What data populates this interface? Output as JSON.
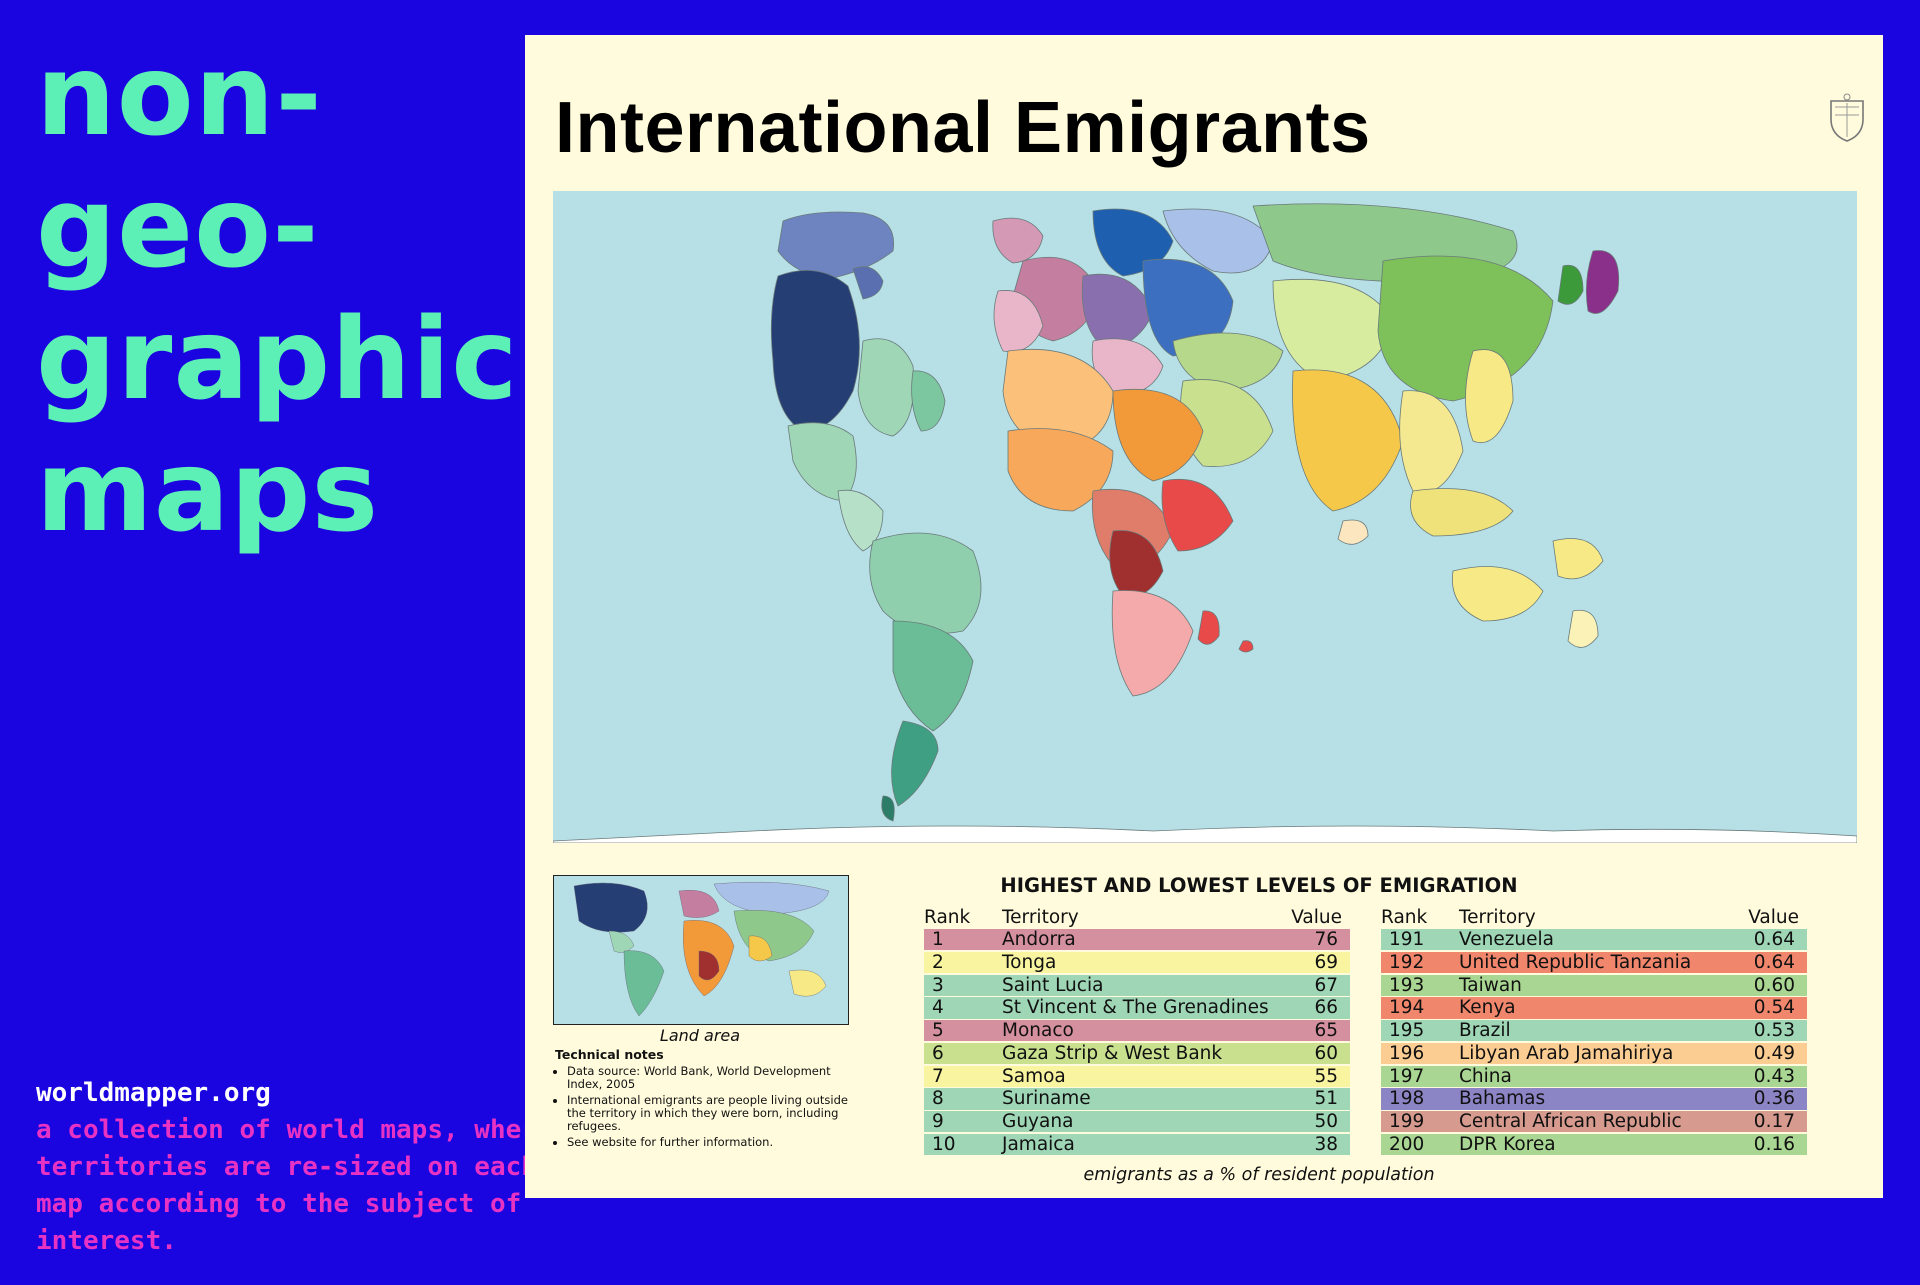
{
  "sidebar": {
    "title_lines": [
      "non-",
      "geo-",
      "graphic",
      "maps"
    ],
    "site": "worldmapper.org",
    "description": "a collection of world maps, where territories are re-sized on each map according to the subject of interest."
  },
  "map": {
    "title": "International Emigrants",
    "inset_caption": "Land area",
    "ocean_color": "#b6e0e6"
  },
  "notes": {
    "heading": "Technical notes",
    "items": [
      "Data source: World Bank, World Development Index, 2005",
      "International emigrants are people living outside the territory in which they were born, including refugees.",
      "See website for further information."
    ]
  },
  "table": {
    "title": "HIGHEST AND LOWEST LEVELS OF EMIGRATION",
    "headers": {
      "rank": "Rank",
      "territory": "Territory",
      "value": "Value"
    },
    "footnote": "emigrants as a % of resident population",
    "highest": [
      {
        "rank": "1",
        "territory": "Andorra",
        "value": "76",
        "color": "#d4909e"
      },
      {
        "rank": "2",
        "territory": "Tonga",
        "value": "69",
        "color": "#f8f4a0"
      },
      {
        "rank": "3",
        "territory": "Saint Lucia",
        "value": "67",
        "color": "#9fd6b6"
      },
      {
        "rank": "4",
        "territory": "St Vincent & The Grenadines",
        "value": "66",
        "color": "#9fd6b6"
      },
      {
        "rank": "5",
        "territory": "Monaco",
        "value": "65",
        "color": "#d4909e"
      },
      {
        "rank": "6",
        "territory": "Gaza Strip & West Bank",
        "value": "60",
        "color": "#c9e08e"
      },
      {
        "rank": "7",
        "territory": "Samoa",
        "value": "55",
        "color": "#f8f4a0"
      },
      {
        "rank": "8",
        "territory": "Suriname",
        "value": "51",
        "color": "#9fd6b6"
      },
      {
        "rank": "9",
        "territory": "Guyana",
        "value": "50",
        "color": "#9fd6b6"
      },
      {
        "rank": "10",
        "territory": "Jamaica",
        "value": "38",
        "color": "#9fd6b6"
      }
    ],
    "lowest": [
      {
        "rank": "191",
        "territory": "Venezuela",
        "value": "0.64",
        "color": "#9fd6b6"
      },
      {
        "rank": "192",
        "territory": "United Republic Tanzania",
        "value": "0.64",
        "color": "#f0866c"
      },
      {
        "rank": "193",
        "territory": "Taiwan",
        "value": "0.60",
        "color": "#a9d692"
      },
      {
        "rank": "194",
        "territory": "Kenya",
        "value": "0.54",
        "color": "#f0866c"
      },
      {
        "rank": "195",
        "territory": "Brazil",
        "value": "0.53",
        "color": "#9fd6b6"
      },
      {
        "rank": "196",
        "territory": "Libyan Arab Jamahiriya",
        "value": "0.49",
        "color": "#fbcd92"
      },
      {
        "rank": "197",
        "territory": "China",
        "value": "0.43",
        "color": "#a9d692"
      },
      {
        "rank": "198",
        "territory": "Bahamas",
        "value": "0.36",
        "color": "#8b85c5"
      },
      {
        "rank": "199",
        "territory": "Central African Republic",
        "value": "0.17",
        "color": "#d69a8e"
      },
      {
        "rank": "200",
        "territory": "DPR Korea",
        "value": "0.16",
        "color": "#a9d692"
      }
    ]
  }
}
